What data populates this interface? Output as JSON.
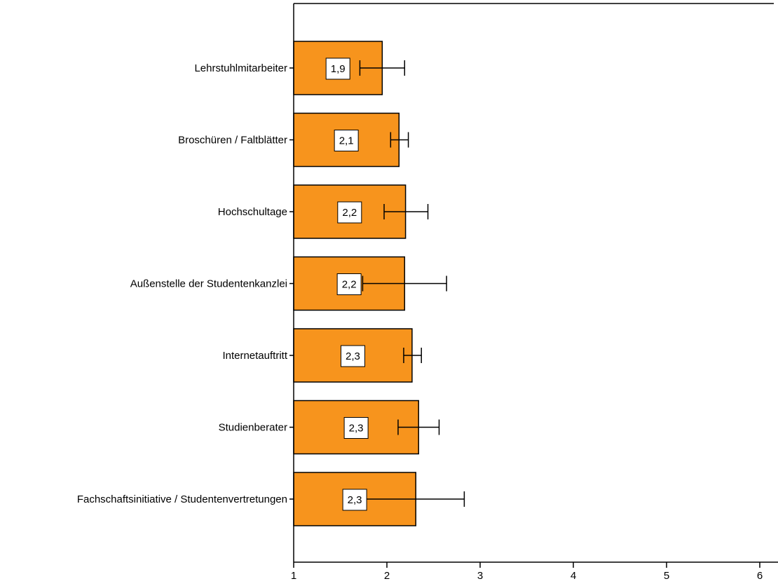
{
  "chart_data": {
    "type": "bar",
    "orientation": "horizontal",
    "categories": [
      "Lehrstuhlmitarbeiter",
      "Broschüren / Faltblätter",
      "Hochschultage",
      "Außenstelle der Studentenkanzlei",
      "Internetauftritt",
      "Studienberater",
      "Fachschaftsinitiative / Studentenvertretungen"
    ],
    "values": [
      1.95,
      2.13,
      2.2,
      2.19,
      2.27,
      2.34,
      2.31
    ],
    "value_labels": [
      "1,9",
      "2,1",
      "2,2",
      "2,2",
      "2,3",
      "2,3",
      "2,3"
    ],
    "error_bars": [
      [
        1.71,
        2.19
      ],
      [
        2.04,
        2.23
      ],
      [
        1.97,
        2.44
      ],
      [
        1.74,
        2.64
      ],
      [
        2.18,
        2.37
      ],
      [
        2.12,
        2.56
      ],
      [
        1.78,
        2.83
      ]
    ],
    "xlim": [
      1,
      6
    ],
    "xticks": [
      "1",
      "2",
      "3",
      "4",
      "5",
      "6"
    ],
    "xlabel": "",
    "ylabel": "",
    "title": "",
    "colors": {
      "bar": "#F7941D",
      "stroke": "#000000",
      "label_bg": "#ffffff"
    },
    "grid": false,
    "legend": "none"
  }
}
